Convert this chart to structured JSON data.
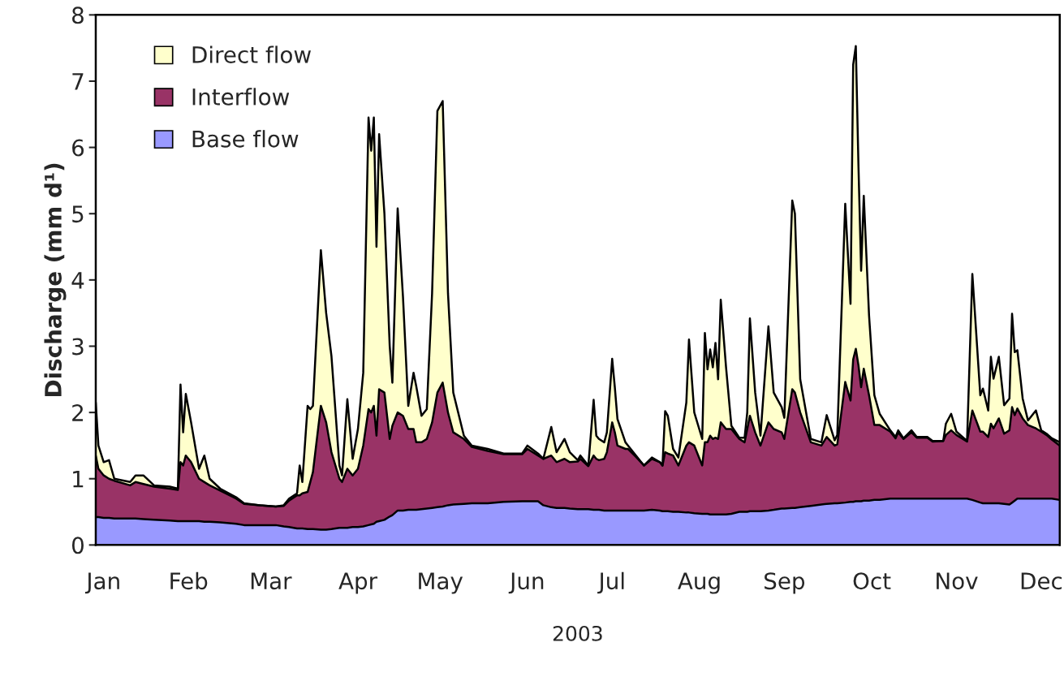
{
  "chart_data": {
    "type": "area",
    "stacked": true,
    "xlabel": "2003",
    "ylabel": "Discharge (mm d¹)",
    "x": [
      "2003-01-01",
      "2003-01-02",
      "2003-01-04",
      "2003-01-06",
      "2003-01-08",
      "2003-01-14",
      "2003-01-16",
      "2003-01-19",
      "2003-01-23",
      "2003-01-29",
      "2003-02-01",
      "2003-02-02",
      "2003-02-03",
      "2003-02-04",
      "2003-02-06",
      "2003-02-09",
      "2003-02-11",
      "2003-02-13",
      "2003-02-17",
      "2003-02-23",
      "2003-02-26",
      "2003-03-04",
      "2003-03-10",
      "2003-03-13",
      "2003-03-15",
      "2003-03-18",
      "2003-03-19",
      "2003-03-20",
      "2003-03-22",
      "2003-03-23",
      "2003-03-24",
      "2003-03-27",
      "2003-03-29",
      "2003-03-31",
      "2003-04-03",
      "2003-04-04",
      "2003-04-06",
      "2003-04-08",
      "2003-04-10",
      "2003-04-12",
      "2003-04-14",
      "2003-04-15",
      "2003-04-16",
      "2003-04-17",
      "2003-04-18",
      "2003-04-20",
      "2003-04-22",
      "2003-04-23",
      "2003-04-25",
      "2003-04-27",
      "2003-04-29",
      "2003-05-01",
      "2003-05-02",
      "2003-05-04",
      "2003-05-06",
      "2003-05-08",
      "2003-05-10",
      "2003-05-12",
      "2003-05-14",
      "2003-05-16",
      "2003-05-20",
      "2003-05-23",
      "2003-05-29",
      "2003-06-04",
      "2003-06-11",
      "2003-06-13",
      "2003-06-17",
      "2003-06-19",
      "2003-06-22",
      "2003-06-24",
      "2003-06-27",
      "2003-06-29",
      "2003-07-02",
      "2003-07-03",
      "2003-07-06",
      "2003-07-08",
      "2003-07-09",
      "2003-07-10",
      "2003-07-12",
      "2003-07-13",
      "2003-07-15",
      "2003-07-16",
      "2003-07-17",
      "2003-07-20",
      "2003-07-21",
      "2003-07-24",
      "2003-07-27",
      "2003-07-30",
      "2003-08-02",
      "2003-08-03",
      "2003-08-04",
      "2003-08-05",
      "2003-08-07",
      "2003-08-09",
      "2003-08-12",
      "2003-08-13",
      "2003-08-15",
      "2003-08-18",
      "2003-08-19",
      "2003-08-20",
      "2003-08-21",
      "2003-08-22",
      "2003-08-23",
      "2003-08-24",
      "2003-08-25",
      "2003-08-27",
      "2003-08-29",
      "2003-09-01",
      "2003-09-03",
      "2003-09-04",
      "2003-09-05",
      "2003-09-07",
      "2003-09-09",
      "2003-09-12",
      "2003-09-14",
      "2003-09-17",
      "2003-09-18",
      "2003-09-21",
      "2003-09-22",
      "2003-09-24",
      "2003-09-28",
      "2003-10-02",
      "2003-10-04",
      "2003-10-07",
      "2003-10-08",
      "2003-10-11",
      "2003-10-13",
      "2003-10-14",
      "2003-10-15",
      "2003-10-16",
      "2003-10-17",
      "2003-10-18",
      "2003-10-20",
      "2003-10-22",
      "2003-10-24",
      "2003-10-28",
      "2003-10-30",
      "2003-10-31",
      "2003-11-02",
      "2003-11-05",
      "2003-11-07",
      "2003-11-11",
      "2003-11-13",
      "2003-11-17",
      "2003-11-18",
      "2003-11-20",
      "2003-11-22",
      "2003-11-26",
      "2003-11-28",
      "2003-12-01",
      "2003-12-02",
      "2003-12-04",
      "2003-12-05",
      "2003-12-06",
      "2003-12-08",
      "2003-12-10",
      "2003-12-12",
      "2003-12-13",
      "2003-12-14",
      "2003-12-15",
      "2003-12-17",
      "2003-12-19",
      "2003-12-22",
      "2003-12-24",
      "2003-12-26",
      "2003-12-28",
      "2003-12-31"
    ],
    "series": [
      {
        "name": "Base flow",
        "color": "#9999ff",
        "values": [
          0.42,
          0.42,
          0.41,
          0.41,
          0.4,
          0.4,
          0.4,
          0.39,
          0.38,
          0.37,
          0.36,
          0.36,
          0.36,
          0.36,
          0.36,
          0.36,
          0.35,
          0.35,
          0.34,
          0.32,
          0.3,
          0.3,
          0.3,
          0.28,
          0.27,
          0.25,
          0.25,
          0.25,
          0.24,
          0.24,
          0.24,
          0.23,
          0.23,
          0.24,
          0.26,
          0.26,
          0.26,
          0.27,
          0.27,
          0.28,
          0.3,
          0.31,
          0.32,
          0.35,
          0.36,
          0.38,
          0.43,
          0.45,
          0.52,
          0.52,
          0.53,
          0.53,
          0.53,
          0.54,
          0.55,
          0.56,
          0.57,
          0.58,
          0.6,
          0.61,
          0.62,
          0.63,
          0.63,
          0.65,
          0.66,
          0.66,
          0.66,
          0.6,
          0.57,
          0.56,
          0.56,
          0.55,
          0.54,
          0.54,
          0.54,
          0.53,
          0.53,
          0.53,
          0.52,
          0.52,
          0.52,
          0.52,
          0.52,
          0.52,
          0.52,
          0.52,
          0.52,
          0.53,
          0.52,
          0.51,
          0.51,
          0.51,
          0.5,
          0.5,
          0.49,
          0.49,
          0.48,
          0.47,
          0.47,
          0.47,
          0.46,
          0.46,
          0.46,
          0.46,
          0.46,
          0.46,
          0.47,
          0.5,
          0.5,
          0.5,
          0.51,
          0.51,
          0.51,
          0.52,
          0.53,
          0.55,
          0.55,
          0.56,
          0.56,
          0.57,
          0.59,
          0.61,
          0.62,
          0.63,
          0.63,
          0.64,
          0.65,
          0.65,
          0.66,
          0.66,
          0.66,
          0.67,
          0.67,
          0.68,
          0.68,
          0.7,
          0.7,
          0.7,
          0.7,
          0.7,
          0.7,
          0.7,
          0.7,
          0.7,
          0.7,
          0.7,
          0.7,
          0.7,
          0.68,
          0.64,
          0.63,
          0.63,
          0.63,
          0.63,
          0.63,
          0.62,
          0.61,
          0.64,
          0.67,
          0.7,
          0.7,
          0.7,
          0.7,
          0.7,
          0.7,
          0.7,
          0.68
        ]
      },
      {
        "name": "Interflow",
        "color": "#993366",
        "values": [
          0.93,
          0.73,
          0.64,
          0.59,
          0.57,
          0.5,
          0.55,
          0.53,
          0.5,
          0.48,
          0.47,
          0.89,
          0.84,
          0.99,
          0.89,
          0.64,
          0.6,
          0.55,
          0.48,
          0.38,
          0.32,
          0.3,
          0.28,
          0.31,
          0.4,
          0.5,
          0.5,
          0.53,
          0.56,
          0.71,
          0.86,
          1.87,
          1.62,
          1.16,
          0.74,
          0.69,
          0.89,
          0.78,
          0.88,
          1.22,
          1.75,
          1.69,
          1.78,
          1.3,
          1.99,
          1.92,
          1.17,
          1.35,
          1.48,
          1.43,
          1.22,
          1.22,
          1.02,
          1.01,
          1.05,
          1.29,
          1.73,
          1.87,
          1.4,
          1.09,
          0.98,
          0.85,
          0.79,
          0.72,
          0.71,
          0.79,
          0.69,
          0.7,
          0.78,
          0.69,
          0.74,
          0.7,
          0.72,
          0.76,
          0.65,
          0.82,
          0.77,
          0.75,
          0.78,
          0.88,
          1.33,
          1.18,
          0.98,
          0.93,
          0.93,
          0.81,
          0.68,
          0.77,
          0.73,
          0.69,
          0.89,
          0.87,
          0.85,
          0.7,
          1.01,
          1.06,
          1.02,
          0.73,
          1.08,
          1.08,
          1.19,
          1.14,
          1.16,
          1.14,
          1.39,
          1.29,
          1.28,
          1.1,
          1.05,
          1.25,
          1.44,
          1.19,
          0.99,
          1.33,
          1.22,
          1.15,
          1.05,
          1.79,
          1.74,
          1.43,
          0.96,
          0.89,
          1.01,
          0.87,
          0.89,
          1.82,
          1.53,
          2.15,
          2.3,
          2.05,
          1.72,
          1.99,
          1.59,
          1.13,
          1.13,
          1.01,
          0.91,
          1.0,
          0.9,
          1.0,
          0.92,
          0.92,
          0.86,
          0.87,
          0.96,
          1.03,
          0.96,
          0.86,
          1.35,
          1.07,
          1.08,
          1.0,
          1.2,
          1.13,
          1.28,
          1.06,
          1.12,
          1.44,
          1.29,
          1.36,
          1.21,
          1.11,
          1.06,
          1.01,
          0.96,
          0.89,
          0.82
        ]
      },
      {
        "name": "Direct flow",
        "color": "#ffffcc",
        "values": [
          0.8,
          0.35,
          0.2,
          0.28,
          0.03,
          0.05,
          0.1,
          0.13,
          0.02,
          0.03,
          0.02,
          1.17,
          0.5,
          0.93,
          0.6,
          0.15,
          0.4,
          0.1,
          0.03,
          0.02,
          0.01,
          0,
          0,
          0.01,
          0.03,
          0.03,
          0.45,
          0.17,
          1.3,
          1.1,
          1.0,
          2.35,
          1.65,
          1.45,
          0.2,
          0.1,
          1.05,
          0.25,
          0.6,
          1.1,
          4.4,
          3.95,
          4.35,
          2.85,
          3.85,
          2.7,
          1.4,
          0.65,
          3.08,
          1.8,
          0.35,
          0.85,
          0.85,
          0.4,
          0.45,
          1.95,
          4.25,
          4.25,
          1.8,
          0.6,
          0.05,
          0.02,
          0.03,
          0.01,
          0.01,
          0.05,
          0.03,
          0,
          0.43,
          0.15,
          0.3,
          0.15,
          0.02,
          0.05,
          0.01,
          0.84,
          0.35,
          0.32,
          0.25,
          0.3,
          0.96,
          0.68,
          0.4,
          0.1,
          0.05,
          0.02,
          0,
          0.02,
          0,
          0,
          0.62,
          0.57,
          0.1,
          0.12,
          0.65,
          1.55,
          0.5,
          0.4,
          1.65,
          1.1,
          1.3,
          1.08,
          1.43,
          0.9,
          1.85,
          0.93,
          0.05,
          0.02,
          0.07,
          0.25,
          1.47,
          0.6,
          0.15,
          1.45,
          0.55,
          0.38,
          0.32,
          2.85,
          2.7,
          0.5,
          0.05,
          0.05,
          0.33,
          0.08,
          0.14,
          2.69,
          1.46,
          4.45,
          4.57,
          3.01,
          1.76,
          2.61,
          1.2,
          0.45,
          0.17,
          0.02,
          0.02,
          0.03,
          0.01,
          0.03,
          0.01,
          0.01,
          0.01,
          0,
          0.17,
          0.25,
          0.05,
          0.01,
          2.06,
          0.55,
          0.65,
          0.4,
          1.01,
          0.75,
          0.93,
          0.43,
          0.48,
          1.41,
          0.95,
          0.88,
          0.3,
          0.07,
          0.27,
          0.02,
          0.02,
          0.02,
          0.05
        ]
      }
    ],
    "xlim": [
      "2003-01-01",
      "2003-12-31"
    ],
    "xticks": [
      {
        "value": "2003-01-04",
        "label": "Jan"
      },
      {
        "value": "2003-02-05",
        "label": "Feb"
      },
      {
        "value": "2003-03-08",
        "label": "Mar"
      },
      {
        "value": "2003-04-10",
        "label": "Apr"
      },
      {
        "value": "2003-05-11",
        "label": "May"
      },
      {
        "value": "2003-06-13",
        "label": "Jun"
      },
      {
        "value": "2003-07-15",
        "label": "Jul"
      },
      {
        "value": "2003-08-17",
        "label": "Aug"
      },
      {
        "value": "2003-09-18",
        "label": "Sep"
      },
      {
        "value": "2003-10-21",
        "label": "Oct"
      },
      {
        "value": "2003-11-22",
        "label": "Nov"
      },
      {
        "value": "2003-12-24",
        "label": "Dec"
      }
    ],
    "ylim": [
      0,
      8
    ],
    "yticks": [
      0,
      1,
      2,
      3,
      4,
      5,
      6,
      7,
      8
    ],
    "grid": false,
    "legend": "top left"
  }
}
